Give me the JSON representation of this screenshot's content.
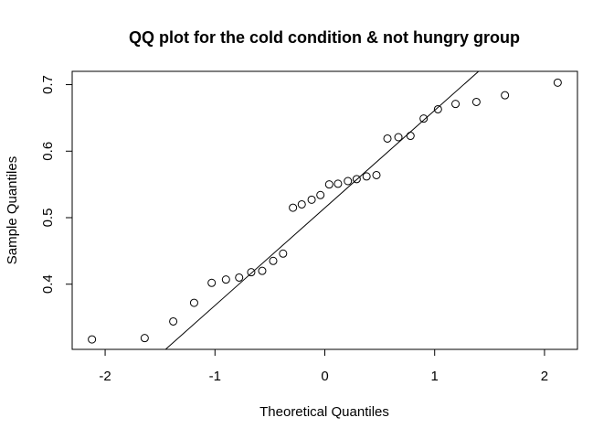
{
  "chart_data": {
    "type": "scatter",
    "title": "QQ plot for the cold condition & not hungry group",
    "xlabel": "Theoretical Quantiles",
    "ylabel": "Sample Quantiles",
    "xlim": [
      -2.3,
      2.3
    ],
    "ylim": [
      0.302,
      0.72
    ],
    "xticks": [
      -2,
      -1,
      0,
      1,
      2
    ],
    "yticks": [
      0.4,
      0.5,
      0.6,
      0.7
    ],
    "grid": false,
    "points": [
      {
        "x": -2.12,
        "y": 0.317
      },
      {
        "x": -1.64,
        "y": 0.319
      },
      {
        "x": -1.38,
        "y": 0.344
      },
      {
        "x": -1.19,
        "y": 0.372
      },
      {
        "x": -1.03,
        "y": 0.402
      },
      {
        "x": -0.9,
        "y": 0.407
      },
      {
        "x": -0.78,
        "y": 0.41
      },
      {
        "x": -0.67,
        "y": 0.418
      },
      {
        "x": -0.57,
        "y": 0.42
      },
      {
        "x": -0.47,
        "y": 0.435
      },
      {
        "x": -0.38,
        "y": 0.446
      },
      {
        "x": -0.29,
        "y": 0.515
      },
      {
        "x": -0.21,
        "y": 0.52
      },
      {
        "x": -0.12,
        "y": 0.527
      },
      {
        "x": -0.04,
        "y": 0.534
      },
      {
        "x": 0.04,
        "y": 0.55
      },
      {
        "x": 0.12,
        "y": 0.551
      },
      {
        "x": 0.21,
        "y": 0.555
      },
      {
        "x": 0.29,
        "y": 0.558
      },
      {
        "x": 0.38,
        "y": 0.562
      },
      {
        "x": 0.47,
        "y": 0.564
      },
      {
        "x": 0.57,
        "y": 0.619
      },
      {
        "x": 0.67,
        "y": 0.621
      },
      {
        "x": 0.78,
        "y": 0.623
      },
      {
        "x": 0.9,
        "y": 0.649
      },
      {
        "x": 1.03,
        "y": 0.663
      },
      {
        "x": 1.19,
        "y": 0.671
      },
      {
        "x": 1.38,
        "y": 0.674
      },
      {
        "x": 1.64,
        "y": 0.684
      },
      {
        "x": 2.12,
        "y": 0.703
      }
    ],
    "reference_line": {
      "x1": -1.45,
      "y1": 0.302,
      "x2": 1.4,
      "y2": 0.72
    }
  }
}
